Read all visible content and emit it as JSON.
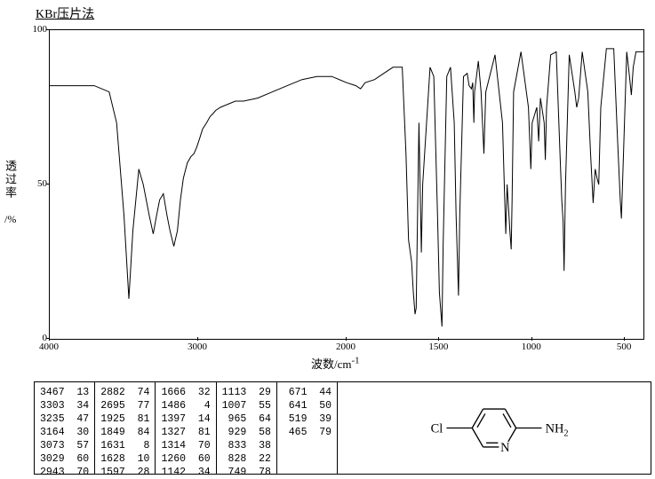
{
  "title": "KBr压片法",
  "ylabel_main": "透过率",
  "ylabel_unit": "/%",
  "xlabel": "波数/cm",
  "xlabel_sup": "-1",
  "chart": {
    "type": "line",
    "background_color": "#ffffff",
    "line_color": "#000000",
    "line_width": 1,
    "xlim": [
      4000,
      400
    ],
    "ylim": [
      0,
      100
    ],
    "yticks": [
      0,
      50,
      100
    ],
    "xticks": [
      4000,
      3000,
      2000,
      1500,
      1000,
      500
    ],
    "data": [
      [
        4000,
        82
      ],
      [
        3900,
        82
      ],
      [
        3800,
        82
      ],
      [
        3700,
        82
      ],
      [
        3600,
        80
      ],
      [
        3550,
        70
      ],
      [
        3500,
        40
      ],
      [
        3467,
        13
      ],
      [
        3440,
        35
      ],
      [
        3400,
        55
      ],
      [
        3370,
        50
      ],
      [
        3330,
        40
      ],
      [
        3303,
        34
      ],
      [
        3280,
        40
      ],
      [
        3260,
        45
      ],
      [
        3235,
        47
      ],
      [
        3210,
        40
      ],
      [
        3190,
        35
      ],
      [
        3164,
        30
      ],
      [
        3140,
        35
      ],
      [
        3120,
        45
      ],
      [
        3100,
        52
      ],
      [
        3073,
        57
      ],
      [
        3050,
        59
      ],
      [
        3029,
        60
      ],
      [
        3010,
        62
      ],
      [
        2990,
        65
      ],
      [
        2970,
        68
      ],
      [
        2943,
        70
      ],
      [
        2920,
        72
      ],
      [
        2900,
        73
      ],
      [
        2882,
        74
      ],
      [
        2850,
        75
      ],
      [
        2800,
        76
      ],
      [
        2750,
        77
      ],
      [
        2695,
        77
      ],
      [
        2600,
        78
      ],
      [
        2500,
        80
      ],
      [
        2400,
        82
      ],
      [
        2300,
        84
      ],
      [
        2200,
        85
      ],
      [
        2100,
        85
      ],
      [
        2000,
        83
      ],
      [
        1950,
        82
      ],
      [
        1925,
        81
      ],
      [
        1900,
        83
      ],
      [
        1849,
        84
      ],
      [
        1800,
        86
      ],
      [
        1750,
        88
      ],
      [
        1700,
        88
      ],
      [
        1680,
        60
      ],
      [
        1666,
        32
      ],
      [
        1650,
        25
      ],
      [
        1640,
        15
      ],
      [
        1631,
        8
      ],
      [
        1625,
        10
      ],
      [
        1620,
        30
      ],
      [
        1610,
        70
      ],
      [
        1597,
        28
      ],
      [
        1590,
        50
      ],
      [
        1550,
        88
      ],
      [
        1530,
        85
      ],
      [
        1510,
        40
      ],
      [
        1500,
        15
      ],
      [
        1486,
        4
      ],
      [
        1480,
        30
      ],
      [
        1460,
        85
      ],
      [
        1440,
        88
      ],
      [
        1420,
        70
      ],
      [
        1410,
        40
      ],
      [
        1397,
        14
      ],
      [
        1390,
        40
      ],
      [
        1370,
        85
      ],
      [
        1350,
        86
      ],
      [
        1340,
        82
      ],
      [
        1327,
        81
      ],
      [
        1320,
        83
      ],
      [
        1314,
        70
      ],
      [
        1310,
        80
      ],
      [
        1290,
        90
      ],
      [
        1275,
        80
      ],
      [
        1260,
        60
      ],
      [
        1250,
        80
      ],
      [
        1200,
        92
      ],
      [
        1160,
        70
      ],
      [
        1150,
        50
      ],
      [
        1142,
        34
      ],
      [
        1135,
        50
      ],
      [
        1125,
        40
      ],
      [
        1120,
        35
      ],
      [
        1113,
        29
      ],
      [
        1108,
        45
      ],
      [
        1100,
        80
      ],
      [
        1060,
        93
      ],
      [
        1020,
        75
      ],
      [
        1007,
        55
      ],
      [
        1000,
        70
      ],
      [
        975,
        75
      ],
      [
        965,
        64
      ],
      [
        955,
        78
      ],
      [
        935,
        70
      ],
      [
        929,
        58
      ],
      [
        922,
        75
      ],
      [
        900,
        92
      ],
      [
        870,
        93
      ],
      [
        850,
        60
      ],
      [
        840,
        45
      ],
      [
        833,
        38
      ],
      [
        828,
        22
      ],
      [
        820,
        50
      ],
      [
        800,
        92
      ],
      [
        770,
        80
      ],
      [
        760,
        75
      ],
      [
        749,
        78
      ],
      [
        730,
        93
      ],
      [
        700,
        80
      ],
      [
        685,
        60
      ],
      [
        671,
        44
      ],
      [
        660,
        55
      ],
      [
        650,
        52
      ],
      [
        641,
        50
      ],
      [
        630,
        75
      ],
      [
        600,
        94
      ],
      [
        560,
        94
      ],
      [
        540,
        65
      ],
      [
        525,
        45
      ],
      [
        519,
        39
      ],
      [
        510,
        55
      ],
      [
        490,
        93
      ],
      [
        475,
        85
      ],
      [
        465,
        79
      ],
      [
        455,
        88
      ],
      [
        440,
        93
      ],
      [
        420,
        93
      ],
      [
        400,
        93
      ]
    ]
  },
  "peak_columns": [
    [
      [
        3467,
        13
      ],
      [
        3303,
        34
      ],
      [
        3235,
        47
      ],
      [
        3164,
        30
      ],
      [
        3073,
        57
      ],
      [
        3029,
        60
      ],
      [
        2943,
        70
      ]
    ],
    [
      [
        2882,
        74
      ],
      [
        2695,
        77
      ],
      [
        1925,
        81
      ],
      [
        1849,
        84
      ],
      [
        1631,
        8
      ],
      [
        1628,
        10
      ],
      [
        1597,
        28
      ]
    ],
    [
      [
        1666,
        32
      ],
      [
        1486,
        4
      ],
      [
        1397,
        14
      ],
      [
        1327,
        81
      ],
      [
        1314,
        70
      ],
      [
        1260,
        60
      ],
      [
        1142,
        34
      ]
    ],
    [
      [
        1113,
        29
      ],
      [
        1007,
        55
      ],
      [
        965,
        64
      ],
      [
        929,
        58
      ],
      [
        833,
        38
      ],
      [
        828,
        22
      ],
      [
        749,
        78
      ]
    ],
    [
      [
        671,
        44
      ],
      [
        641,
        50
      ],
      [
        519,
        39
      ],
      [
        465,
        79
      ]
    ]
  ],
  "molecule": {
    "left_label": "Cl",
    "right_label": "NH",
    "right_sub": "2",
    "ring_atom": "N",
    "line_color": "#000000"
  }
}
